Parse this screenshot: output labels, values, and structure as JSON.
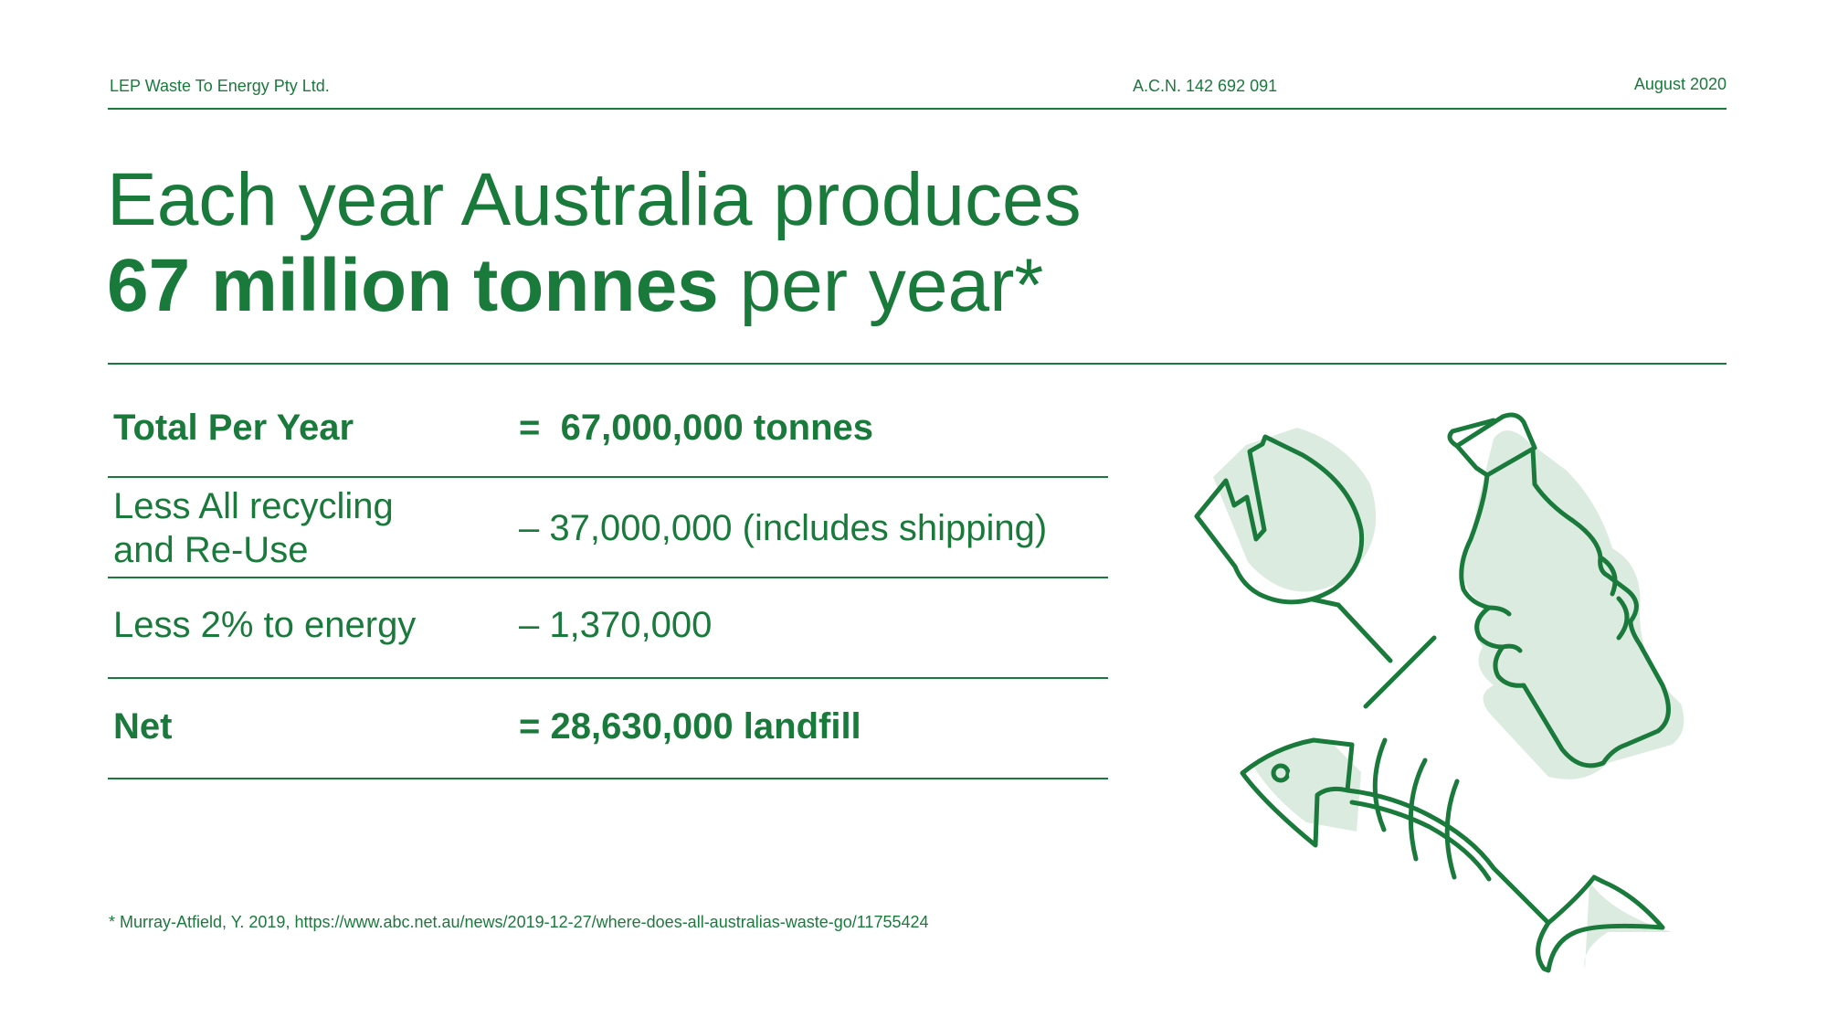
{
  "header": {
    "company": "LEP Waste To Energy Pty Ltd.",
    "acn": "A.C.N. 142 692 091",
    "date": "August 2020"
  },
  "title": {
    "line1": "Each year Australia produces",
    "line2_bold": "67 million tonnes",
    "line2_rest": " per year*"
  },
  "table": {
    "rows": [
      {
        "label": "Total Per Year",
        "value": "=  67,000,000 tonnes"
      },
      {
        "label_line1": "Less All recycling",
        "label_line2": "and Re-Use",
        "value": "– 37,000,000 (includes shipping)"
      },
      {
        "label": "Less 2% to energy",
        "value": "– 1,370,000"
      },
      {
        "label": "Net",
        "value": "= 28,630,000 landfill"
      }
    ]
  },
  "footnote": "* Murray-Atfield, Y. 2019, https://www.abc.net.au/news/2019-12-27/where-does-all-australias-waste-go/11755424",
  "colors": {
    "brand_green": "#1a7a3c",
    "shadow_green": "#dcebe0"
  },
  "illustration": {
    "icons": [
      "broken-glass-icon",
      "plastic-bottle-icon",
      "fish-bone-icon"
    ]
  }
}
